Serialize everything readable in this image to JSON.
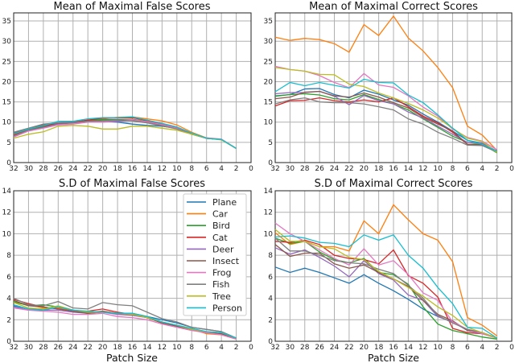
{
  "chart_data": [
    {
      "type": "line",
      "title": "Mean of Maximal False Scores",
      "xlabel": "",
      "ylabel": "",
      "xlim": [
        32,
        0
      ],
      "ylim": [
        0,
        37
      ],
      "xticks": [
        32,
        30,
        28,
        26,
        24,
        22,
        20,
        18,
        16,
        14,
        12,
        10,
        8,
        6,
        4,
        2,
        0
      ],
      "yticks": [
        0,
        5,
        10,
        15,
        20,
        25,
        30,
        35
      ],
      "grid": true,
      "x": [
        32,
        30,
        28,
        26,
        24,
        22,
        20,
        18,
        16,
        14,
        12,
        10,
        8,
        6,
        4,
        2
      ],
      "series": [
        {
          "name": "Plane",
          "values": [
            7.0,
            8.2,
            9.2,
            9.8,
            10.0,
            10.3,
            10.2,
            10.0,
            9.5,
            9.2,
            9.0,
            8.5,
            7.0,
            6.0,
            5.7,
            3.5
          ]
        },
        {
          "name": "Car",
          "values": [
            6.8,
            8.0,
            8.8,
            9.6,
            9.9,
            10.4,
            10.8,
            11.2,
            11.3,
            10.8,
            10.3,
            9.3,
            7.5,
            6.1,
            5.7,
            3.5
          ]
        },
        {
          "name": "Bird",
          "values": [
            6.6,
            8.0,
            8.8,
            9.6,
            9.9,
            10.4,
            10.6,
            10.6,
            10.7,
            10.2,
            9.5,
            8.6,
            7.2,
            6.0,
            5.7,
            3.5
          ]
        },
        {
          "name": "Cat",
          "values": [
            6.9,
            8.3,
            9.0,
            9.8,
            10.0,
            10.5,
            11.0,
            11.0,
            11.1,
            10.4,
            9.6,
            8.7,
            7.2,
            6.0,
            5.7,
            3.5
          ]
        },
        {
          "name": "Deer",
          "values": [
            6.5,
            7.9,
            8.6,
            9.5,
            9.8,
            10.1,
            10.0,
            10.2,
            10.4,
            10.0,
            9.3,
            8.4,
            7.0,
            6.0,
            5.7,
            3.5
          ]
        },
        {
          "name": "Insect",
          "values": [
            7.3,
            8.4,
            9.4,
            9.7,
            9.9,
            10.2,
            10.3,
            10.5,
            10.5,
            10.0,
            9.3,
            8.5,
            7.1,
            6.0,
            5.7,
            3.5
          ]
        },
        {
          "name": "Frog",
          "values": [
            6.3,
            7.8,
            8.5,
            9.3,
            9.5,
            10.0,
            10.0,
            10.4,
            10.6,
            10.1,
            9.4,
            8.5,
            7.0,
            6.1,
            5.8,
            3.5
          ]
        },
        {
          "name": "Fish",
          "values": [
            7.5,
            8.5,
            9.5,
            9.8,
            9.9,
            10.2,
            10.3,
            10.5,
            10.3,
            9.8,
            9.1,
            8.3,
            7.0,
            6.0,
            5.7,
            3.5
          ]
        },
        {
          "name": "Tree",
          "values": [
            6.0,
            7.0,
            7.6,
            9.0,
            9.2,
            9.0,
            8.3,
            8.3,
            9.0,
            9.0,
            8.5,
            8.0,
            7.0,
            6.0,
            5.6,
            3.5
          ]
        },
        {
          "name": "Person",
          "values": [
            7.1,
            8.3,
            9.1,
            10.2,
            10.2,
            10.8,
            11.1,
            11.1,
            11.3,
            10.5,
            9.7,
            8.8,
            7.3,
            6.0,
            5.7,
            3.5
          ]
        }
      ]
    },
    {
      "type": "line",
      "title": "Mean of Maximal Correct Scores",
      "xlabel": "",
      "ylabel": "",
      "xlim": [
        32,
        0
      ],
      "ylim": [
        0,
        37
      ],
      "xticks": [
        32,
        30,
        28,
        26,
        24,
        22,
        20,
        18,
        16,
        14,
        12,
        10,
        8,
        6,
        4,
        2,
        0
      ],
      "yticks": [
        0,
        5,
        10,
        15,
        20,
        25,
        30,
        35
      ],
      "grid": true,
      "x": [
        32,
        30,
        28,
        26,
        24,
        22,
        20,
        18,
        16,
        14,
        12,
        10,
        8,
        6,
        4,
        2
      ],
      "series": [
        {
          "name": "Plane",
          "values": [
            16.5,
            16.8,
            18.2,
            18.3,
            16.8,
            16.0,
            17.9,
            16.9,
            15.5,
            14.2,
            12.0,
            10.0,
            7.8,
            5.5,
            4.8,
            2.8
          ]
        },
        {
          "name": "Car",
          "values": [
            31.0,
            30.2,
            30.7,
            30.4,
            29.4,
            27.3,
            34.1,
            31.4,
            36.2,
            30.8,
            27.6,
            23.5,
            18.5,
            9.0,
            6.8,
            3.0
          ]
        },
        {
          "name": "Bird",
          "values": [
            16.4,
            16.8,
            17.0,
            16.7,
            15.8,
            15.5,
            16.8,
            15.6,
            14.5,
            13.0,
            10.8,
            8.7,
            6.5,
            5.0,
            4.6,
            2.4
          ]
        },
        {
          "name": "Cat",
          "values": [
            14.0,
            15.3,
            15.4,
            16.0,
            15.3,
            15.0,
            15.5,
            15.0,
            16.0,
            13.8,
            11.5,
            9.8,
            7.5,
            4.5,
            4.4,
            2.8
          ]
        },
        {
          "name": "Deer",
          "values": [
            17.0,
            17.3,
            17.3,
            17.6,
            16.4,
            14.3,
            16.6,
            15.3,
            14.5,
            12.5,
            11.0,
            9.0,
            7.0,
            5.0,
            4.8,
            2.8
          ]
        },
        {
          "name": "Insect",
          "values": [
            15.8,
            16.2,
            17.4,
            17.6,
            16.5,
            16.2,
            17.2,
            16.2,
            14.8,
            13.5,
            11.2,
            9.5,
            7.8,
            4.5,
            4.5,
            2.8
          ]
        },
        {
          "name": "Frog",
          "values": [
            23.8,
            23.0,
            22.6,
            21.5,
            19.8,
            18.5,
            22.0,
            19.2,
            18.6,
            16.5,
            13.7,
            11.5,
            8.3,
            6.2,
            5.3,
            3.2
          ]
        },
        {
          "name": "Fish",
          "values": [
            14.5,
            15.5,
            16.0,
            15.0,
            14.8,
            14.8,
            14.5,
            13.8,
            13.0,
            10.8,
            9.5,
            7.5,
            6.0,
            4.3,
            4.2,
            2.6
          ]
        },
        {
          "name": "Tree",
          "values": [
            23.5,
            23.0,
            22.6,
            21.8,
            21.7,
            19.4,
            18.8,
            17.2,
            16.0,
            14.6,
            13.0,
            11.0,
            8.5,
            6.0,
            5.2,
            2.5
          ]
        },
        {
          "name": "Person",
          "values": [
            17.5,
            19.8,
            19.0,
            19.8,
            19.1,
            18.4,
            20.6,
            19.8,
            19.7,
            16.7,
            14.8,
            11.8,
            8.5,
            5.5,
            4.5,
            2.8
          ]
        }
      ]
    },
    {
      "type": "line",
      "title": "S.D of Maximal False Scores",
      "xlabel": "Patch Size",
      "ylabel": "",
      "xlim": [
        32,
        0
      ],
      "ylim": [
        0,
        14
      ],
      "xticks": [
        32,
        30,
        28,
        26,
        24,
        22,
        20,
        18,
        16,
        14,
        12,
        10,
        8,
        6,
        4,
        2,
        0
      ],
      "yticks": [
        0,
        2,
        4,
        6,
        8,
        10,
        12,
        14
      ],
      "grid": true,
      "legend": "upper-right",
      "x": [
        32,
        30,
        28,
        26,
        24,
        22,
        20,
        18,
        16,
        14,
        12,
        10,
        8,
        6,
        4,
        2
      ],
      "series": [
        {
          "name": "Plane",
          "values": [
            3.3,
            3.0,
            3.0,
            3.1,
            2.8,
            2.7,
            2.7,
            2.6,
            2.6,
            2.3,
            2.0,
            1.7,
            1.3,
            1.1,
            0.9,
            0.3
          ]
        },
        {
          "name": "Car",
          "values": [
            3.6,
            3.4,
            3.1,
            3.1,
            2.8,
            2.7,
            2.8,
            2.6,
            2.5,
            2.2,
            1.7,
            1.4,
            1.1,
            0.7,
            0.6,
            0.2
          ]
        },
        {
          "name": "Bird",
          "values": [
            3.7,
            3.3,
            3.4,
            3.2,
            2.9,
            2.6,
            2.7,
            2.6,
            2.5,
            2.2,
            1.7,
            1.4,
            1.1,
            0.8,
            0.7,
            0.2
          ]
        },
        {
          "name": "Cat",
          "values": [
            3.9,
            3.5,
            3.2,
            3.0,
            2.8,
            2.8,
            3.0,
            2.7,
            2.5,
            2.2,
            1.7,
            1.4,
            1.1,
            0.8,
            0.7,
            0.3
          ]
        },
        {
          "name": "Deer",
          "values": [
            3.2,
            2.9,
            2.9,
            2.9,
            2.7,
            2.6,
            2.7,
            2.5,
            2.4,
            2.2,
            1.7,
            1.4,
            1.1,
            0.8,
            0.7,
            0.3
          ]
        },
        {
          "name": "Insect",
          "values": [
            3.8,
            3.3,
            3.2,
            3.0,
            2.8,
            2.6,
            2.8,
            2.6,
            2.5,
            2.2,
            1.7,
            1.4,
            1.1,
            0.8,
            0.7,
            0.3
          ]
        },
        {
          "name": "Frog",
          "values": [
            3.1,
            2.9,
            2.8,
            2.7,
            2.5,
            2.5,
            2.6,
            2.3,
            2.2,
            2.0,
            1.6,
            1.3,
            1.0,
            0.8,
            0.6,
            0.2
          ]
        },
        {
          "name": "Fish",
          "values": [
            4.0,
            3.4,
            3.3,
            3.7,
            3.1,
            3.0,
            3.6,
            3.4,
            3.3,
            2.7,
            2.1,
            1.8,
            1.3,
            1.1,
            0.9,
            0.3
          ]
        },
        {
          "name": "Tree",
          "values": [
            3.6,
            3.1,
            3.0,
            3.3,
            2.9,
            2.7,
            2.7,
            2.6,
            2.5,
            2.2,
            1.8,
            1.5,
            1.1,
            0.9,
            0.8,
            0.3
          ]
        },
        {
          "name": "Person",
          "values": [
            3.4,
            3.0,
            2.9,
            3.2,
            2.9,
            2.8,
            2.7,
            2.6,
            2.6,
            2.3,
            1.8,
            1.5,
            1.2,
            0.9,
            0.8,
            0.3
          ]
        }
      ]
    },
    {
      "type": "line",
      "title": "S.D of Maximal Correct Scores",
      "xlabel": "Patch Size",
      "ylabel": "",
      "xlim": [
        32,
        0
      ],
      "ylim": [
        0,
        14
      ],
      "xticks": [
        32,
        30,
        28,
        26,
        24,
        22,
        20,
        18,
        16,
        14,
        12,
        10,
        8,
        6,
        4,
        2,
        0
      ],
      "yticks": [
        0,
        2,
        4,
        6,
        8,
        10,
        12,
        14
      ],
      "grid": true,
      "x": [
        32,
        30,
        28,
        26,
        24,
        22,
        20,
        18,
        16,
        14,
        12,
        10,
        8,
        6,
        4,
        2
      ],
      "series": [
        {
          "name": "Plane",
          "values": [
            6.9,
            6.4,
            6.8,
            6.4,
            5.9,
            5.4,
            6.2,
            5.4,
            4.7,
            3.9,
            3.0,
            2.3,
            1.8,
            1.1,
            0.8,
            0.3
          ]
        },
        {
          "name": "Car",
          "values": [
            10.1,
            9.0,
            9.3,
            8.8,
            8.8,
            8.4,
            11.2,
            10.0,
            12.7,
            11.3,
            10.0,
            9.4,
            7.4,
            2.2,
            1.5,
            0.5
          ]
        },
        {
          "name": "Bird",
          "values": [
            9.6,
            9.1,
            9.3,
            8.3,
            7.6,
            7.3,
            7.7,
            6.4,
            6.2,
            5.3,
            3.2,
            1.6,
            1.0,
            0.7,
            0.4,
            0.2
          ]
        },
        {
          "name": "Cat",
          "values": [
            9.3,
            9.2,
            9.4,
            9.0,
            8.0,
            7.7,
            7.6,
            7.2,
            8.5,
            6.1,
            5.4,
            4.1,
            1.2,
            0.8,
            0.7,
            0.3
          ]
        },
        {
          "name": "Deer",
          "values": [
            8.7,
            8.1,
            8.5,
            7.8,
            7.0,
            6.0,
            7.5,
            6.3,
            5.7,
            4.3,
            3.8,
            2.3,
            1.8,
            1.0,
            0.7,
            0.3
          ]
        },
        {
          "name": "Insect",
          "values": [
            9.0,
            7.9,
            8.2,
            8.2,
            7.2,
            6.8,
            7.1,
            6.4,
            5.8,
            5.1,
            3.8,
            2.5,
            1.9,
            1.0,
            0.8,
            0.3
          ]
        },
        {
          "name": "Frog",
          "values": [
            11.0,
            10.0,
            9.3,
            8.5,
            7.7,
            7.1,
            8.6,
            7.1,
            7.5,
            6.2,
            4.5,
            3.8,
            1.8,
            1.1,
            0.7,
            0.3
          ]
        },
        {
          "name": "Fish",
          "values": [
            9.6,
            8.4,
            8.4,
            8.0,
            7.5,
            7.3,
            7.2,
            6.7,
            6.3,
            5.2,
            4.0,
            2.4,
            1.7,
            1.1,
            0.8,
            0.3
          ]
        },
        {
          "name": "Tree",
          "values": [
            10.4,
            9.3,
            9.3,
            8.8,
            8.6,
            7.8,
            7.6,
            6.5,
            5.8,
            5.0,
            4.2,
            3.2,
            2.4,
            1.3,
            0.8,
            0.3
          ]
        },
        {
          "name": "Person",
          "values": [
            9.7,
            9.8,
            9.6,
            9.2,
            9.1,
            8.8,
            9.9,
            9.4,
            9.9,
            8.0,
            6.8,
            5.0,
            3.5,
            1.3,
            1.2,
            0.3
          ]
        }
      ]
    }
  ],
  "legend": {
    "entries": [
      "Plane",
      "Car",
      "Bird",
      "Cat",
      "Deer",
      "Insect",
      "Frog",
      "Fish",
      "Tree",
      "Person"
    ],
    "colors": [
      "#1f77b4",
      "#ff7f0e",
      "#2ca02c",
      "#d62728",
      "#9467bd",
      "#8c564b",
      "#e377c2",
      "#7f7f7f",
      "#bcbd22",
      "#17becf"
    ]
  }
}
